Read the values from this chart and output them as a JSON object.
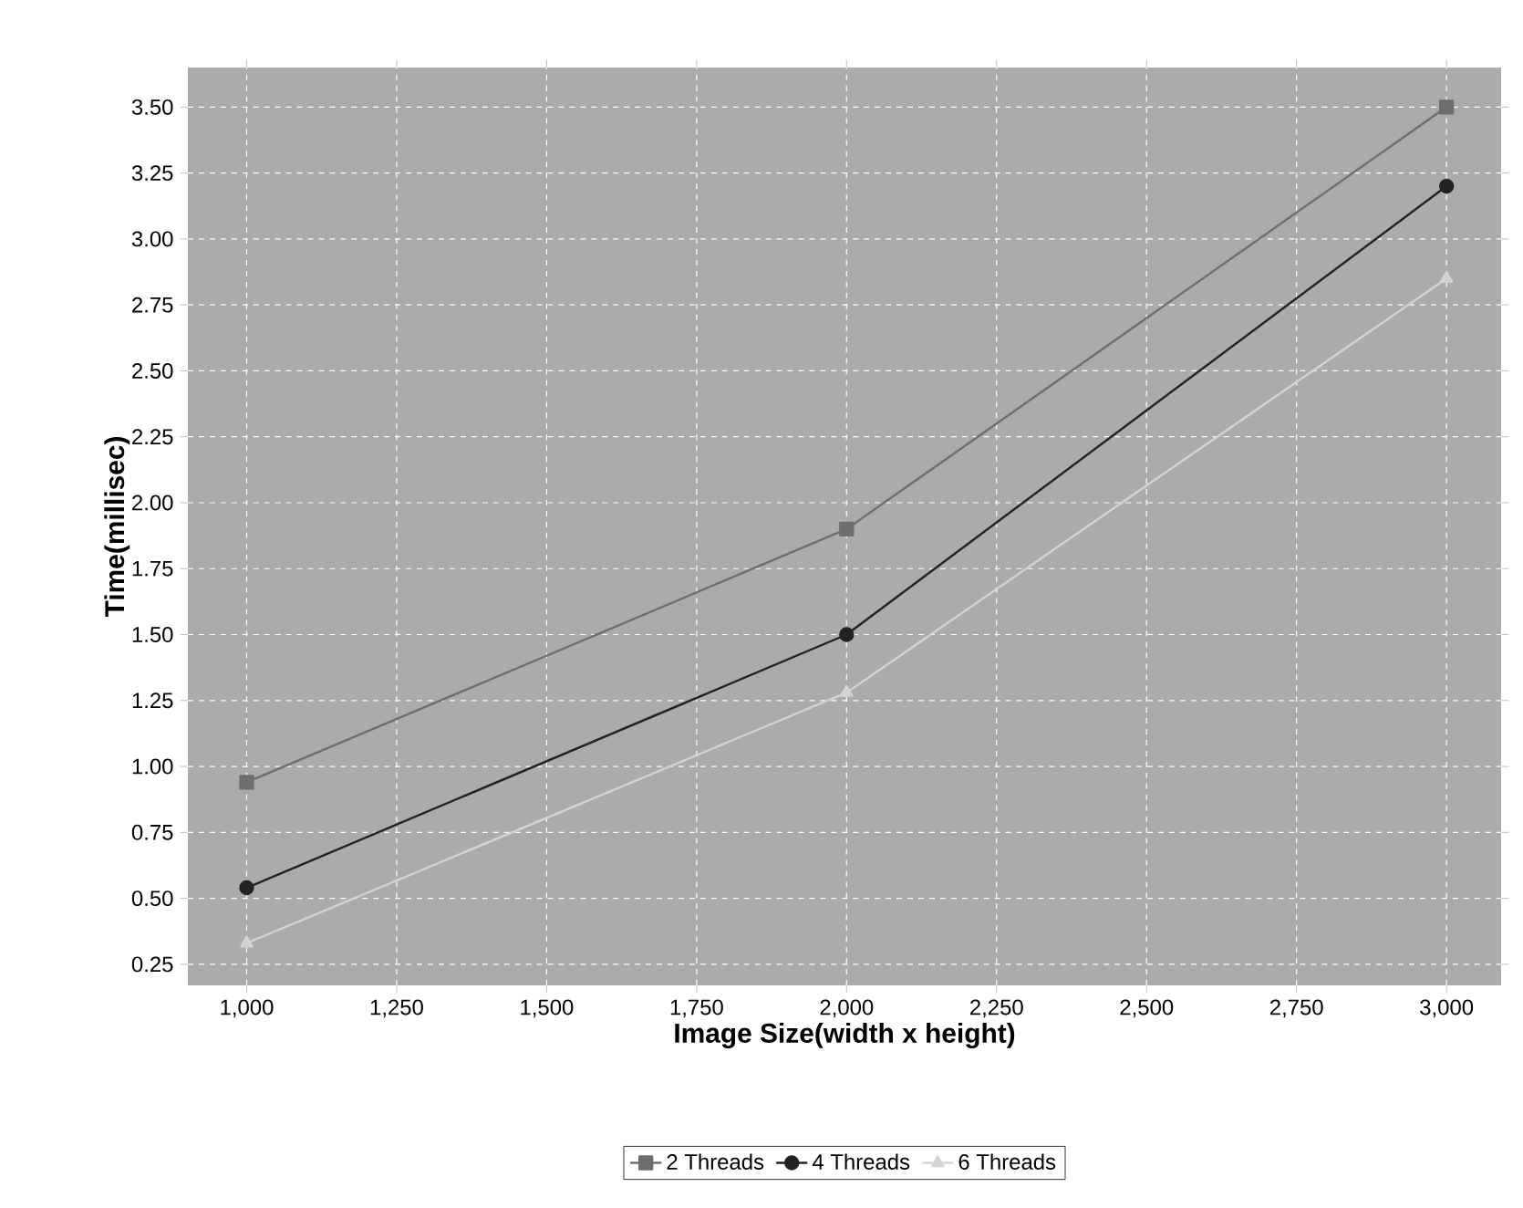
{
  "chart_data": {
    "type": "line",
    "xlabel": "Image Size(width x height)",
    "ylabel": "Time(millisec)",
    "x": [
      1000,
      2000,
      3000
    ],
    "series": [
      {
        "name": "2 Threads",
        "color": "#6e6e6e",
        "marker": "square",
        "values": [
          0.94,
          1.9,
          3.5
        ]
      },
      {
        "name": "4 Threads",
        "color": "#222222",
        "marker": "circle",
        "values": [
          0.54,
          1.5,
          3.2
        ]
      },
      {
        "name": "6 Threads",
        "color": "#d4d4d4",
        "marker": "triangle",
        "values": [
          0.33,
          1.28,
          2.85
        ]
      }
    ],
    "xlim": [
      902,
      3091
    ],
    "ylim": [
      0.17,
      3.65
    ],
    "xticks": [
      {
        "value": 1000,
        "label": "1,000"
      },
      {
        "value": 1250,
        "label": "1,250"
      },
      {
        "value": 1500,
        "label": "1,500"
      },
      {
        "value": 1750,
        "label": "1,750"
      },
      {
        "value": 2000,
        "label": "2,000"
      },
      {
        "value": 2250,
        "label": "2,250"
      },
      {
        "value": 2500,
        "label": "2,500"
      },
      {
        "value": 2750,
        "label": "2,750"
      },
      {
        "value": 3000,
        "label": "3,000"
      }
    ],
    "yticks": [
      {
        "value": 0.25,
        "label": "0.25"
      },
      {
        "value": 0.5,
        "label": "0.50"
      },
      {
        "value": 0.75,
        "label": "0.75"
      },
      {
        "value": 1.0,
        "label": "1.00"
      },
      {
        "value": 1.25,
        "label": "1.25"
      },
      {
        "value": 1.5,
        "label": "1.50"
      },
      {
        "value": 1.75,
        "label": "1.75"
      },
      {
        "value": 2.0,
        "label": "2.00"
      },
      {
        "value": 2.25,
        "label": "2.25"
      },
      {
        "value": 2.5,
        "label": "2.50"
      },
      {
        "value": 2.75,
        "label": "2.75"
      },
      {
        "value": 3.0,
        "label": "3.00"
      },
      {
        "value": 3.25,
        "label": "3.25"
      },
      {
        "value": 3.5,
        "label": "3.50"
      }
    ],
    "grid": true,
    "legend": "bottom",
    "line_style": "solid"
  }
}
